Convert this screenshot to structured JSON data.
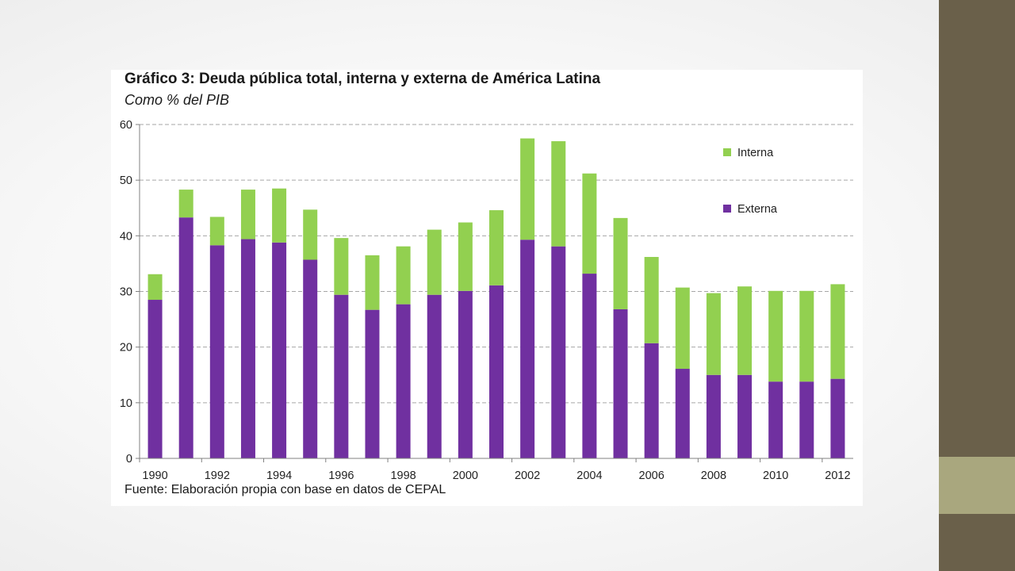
{
  "chart_data": {
    "type": "bar",
    "stacked": true,
    "title": "Gráfico 3: Deuda pública total, interna y externa de América Latina",
    "subtitle": "Como % del PIB",
    "source": "Fuente: Elaboración propia con base en datos de CEPAL",
    "categories": [
      "1990",
      "1991",
      "1992",
      "1993",
      "1994",
      "1995",
      "1996",
      "1997",
      "1998",
      "1999",
      "2000",
      "2001",
      "2002",
      "2003",
      "2004",
      "2005",
      "2006",
      "2007",
      "2008",
      "2009",
      "2010",
      "2011",
      "2012"
    ],
    "x_tick_labels": [
      "1990",
      "1992",
      "1994",
      "1996",
      "1998",
      "2000",
      "2002",
      "2004",
      "2006",
      "2008",
      "2010",
      "2012"
    ],
    "y_ticks": [
      0,
      10,
      20,
      30,
      40,
      50,
      60
    ],
    "ylim": [
      0,
      60
    ],
    "grid": true,
    "legend_position": "top-right",
    "series": [
      {
        "name": "Externa",
        "color": "#7030a0",
        "values": [
          28.5,
          43.3,
          38.3,
          39.4,
          38.8,
          35.7,
          29.4,
          26.7,
          27.7,
          29.4,
          30.1,
          31.1,
          39.3,
          38.1,
          33.2,
          26.8,
          20.7,
          16.1,
          15.0,
          15.0,
          13.8,
          13.8,
          14.3
        ]
      },
      {
        "name": "Interna",
        "color": "#92d050",
        "values": [
          4.6,
          5.0,
          5.1,
          8.9,
          9.7,
          9.0,
          10.2,
          9.8,
          10.4,
          11.7,
          12.3,
          13.5,
          18.2,
          18.9,
          18.0,
          16.4,
          15.5,
          14.6,
          14.7,
          15.9,
          16.3,
          16.3,
          17.0
        ]
      }
    ],
    "legend_order": [
      "Interna",
      "Externa"
    ]
  }
}
